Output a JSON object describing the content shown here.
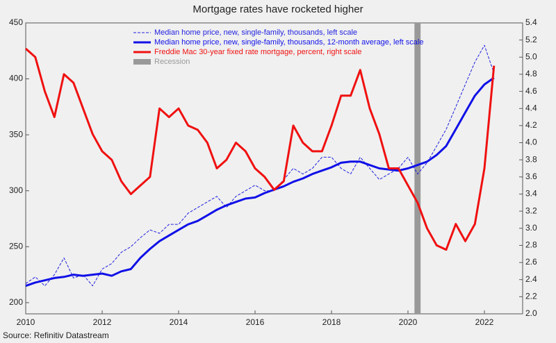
{
  "chart_data": {
    "type": "line",
    "title": "Mortgage rates have rocketed higher",
    "source": "Source: Refinitiv Datastream",
    "x": [
      2010,
      2010.25,
      2010.5,
      2010.75,
      2011,
      2011.25,
      2011.5,
      2011.75,
      2012,
      2012.25,
      2012.5,
      2012.75,
      2013,
      2013.25,
      2013.5,
      2013.75,
      2014,
      2014.25,
      2014.5,
      2014.75,
      2015,
      2015.25,
      2015.5,
      2015.75,
      2016,
      2016.25,
      2016.5,
      2016.75,
      2017,
      2017.25,
      2017.5,
      2017.75,
      2018,
      2018.25,
      2018.5,
      2018.75,
      2019,
      2019.25,
      2019.5,
      2019.75,
      2020,
      2020.25,
      2020.5,
      2020.75,
      2021,
      2021.25,
      2021.5,
      2021.75,
      2022,
      2022.25
    ],
    "xlim": [
      2010,
      2023
    ],
    "xticks": [
      2010,
      2012,
      2014,
      2016,
      2018,
      2020,
      2022
    ],
    "ylim": [
      190,
      450
    ],
    "yticks": [
      200,
      250,
      300,
      350,
      400,
      450
    ],
    "y2lim": [
      2.0,
      5.4
    ],
    "y2ticks": [
      {
        "value": 2.0,
        "label": "2.0"
      },
      2.2,
      2.4,
      2.6,
      2.8,
      {
        "value": 3.0,
        "label": "3.0"
      },
      3.2,
      3.4,
      3.6,
      3.8,
      {
        "value": 4.0,
        "label": "4.0"
      },
      4.2,
      4.4,
      4.6,
      4.8,
      {
        "value": 5.0,
        "label": "5.0"
      },
      5.2,
      5.4
    ],
    "series": [
      {
        "name": "Median home price, new, single-family, thousands, left scale",
        "color": "#1f1fe0",
        "dash": "4,2",
        "width": 1,
        "values": [
          217,
          223,
          215,
          225,
          240,
          222,
          225,
          215,
          230,
          235,
          245,
          250,
          258,
          265,
          262,
          270,
          270,
          280,
          285,
          290,
          295,
          285,
          295,
          300,
          305,
          300,
          300,
          310,
          320,
          315,
          320,
          330,
          330,
          320,
          315,
          330,
          320,
          310,
          315,
          320,
          330,
          315,
          325,
          340,
          355,
          375,
          395,
          415,
          430,
          405
        ]
      },
      {
        "name": "Median home price, new, single-family, thousands, 12-month average, left scale",
        "color": "#1010e8",
        "width": 3,
        "values": [
          215,
          218,
          220,
          222,
          223,
          225,
          224,
          225,
          226,
          224,
          228,
          230,
          240,
          248,
          255,
          260,
          265,
          270,
          273,
          278,
          283,
          287,
          290,
          293,
          294,
          298,
          301,
          304,
          308,
          311,
          315,
          318,
          321,
          325,
          326,
          326,
          323,
          320,
          319,
          318,
          320,
          323,
          326,
          332,
          340,
          355,
          370,
          385,
          395,
          401
        ]
      },
      {
        "name": "Freddie Mac 30-year fixed rate mortgage, percent, right scale",
        "color": "#f01010",
        "width": 3,
        "axis": "y2",
        "values": [
          5.1,
          5.0,
          4.6,
          4.3,
          4.8,
          4.7,
          4.4,
          4.1,
          3.9,
          3.8,
          3.55,
          3.4,
          3.5,
          3.6,
          4.4,
          4.3,
          4.4,
          4.2,
          4.15,
          4.0,
          3.7,
          3.8,
          4.0,
          3.9,
          3.7,
          3.6,
          3.45,
          3.55,
          4.2,
          4.0,
          3.9,
          3.9,
          4.2,
          4.55,
          4.55,
          4.85,
          4.4,
          4.1,
          3.7,
          3.7,
          3.5,
          3.3,
          3.0,
          2.8,
          2.75,
          3.05,
          2.85,
          3.05,
          3.7,
          4.9
        ]
      }
    ],
    "recession": {
      "name": "Recession",
      "color": "#999999",
      "x": [
        2020.17,
        2020.33
      ]
    }
  }
}
